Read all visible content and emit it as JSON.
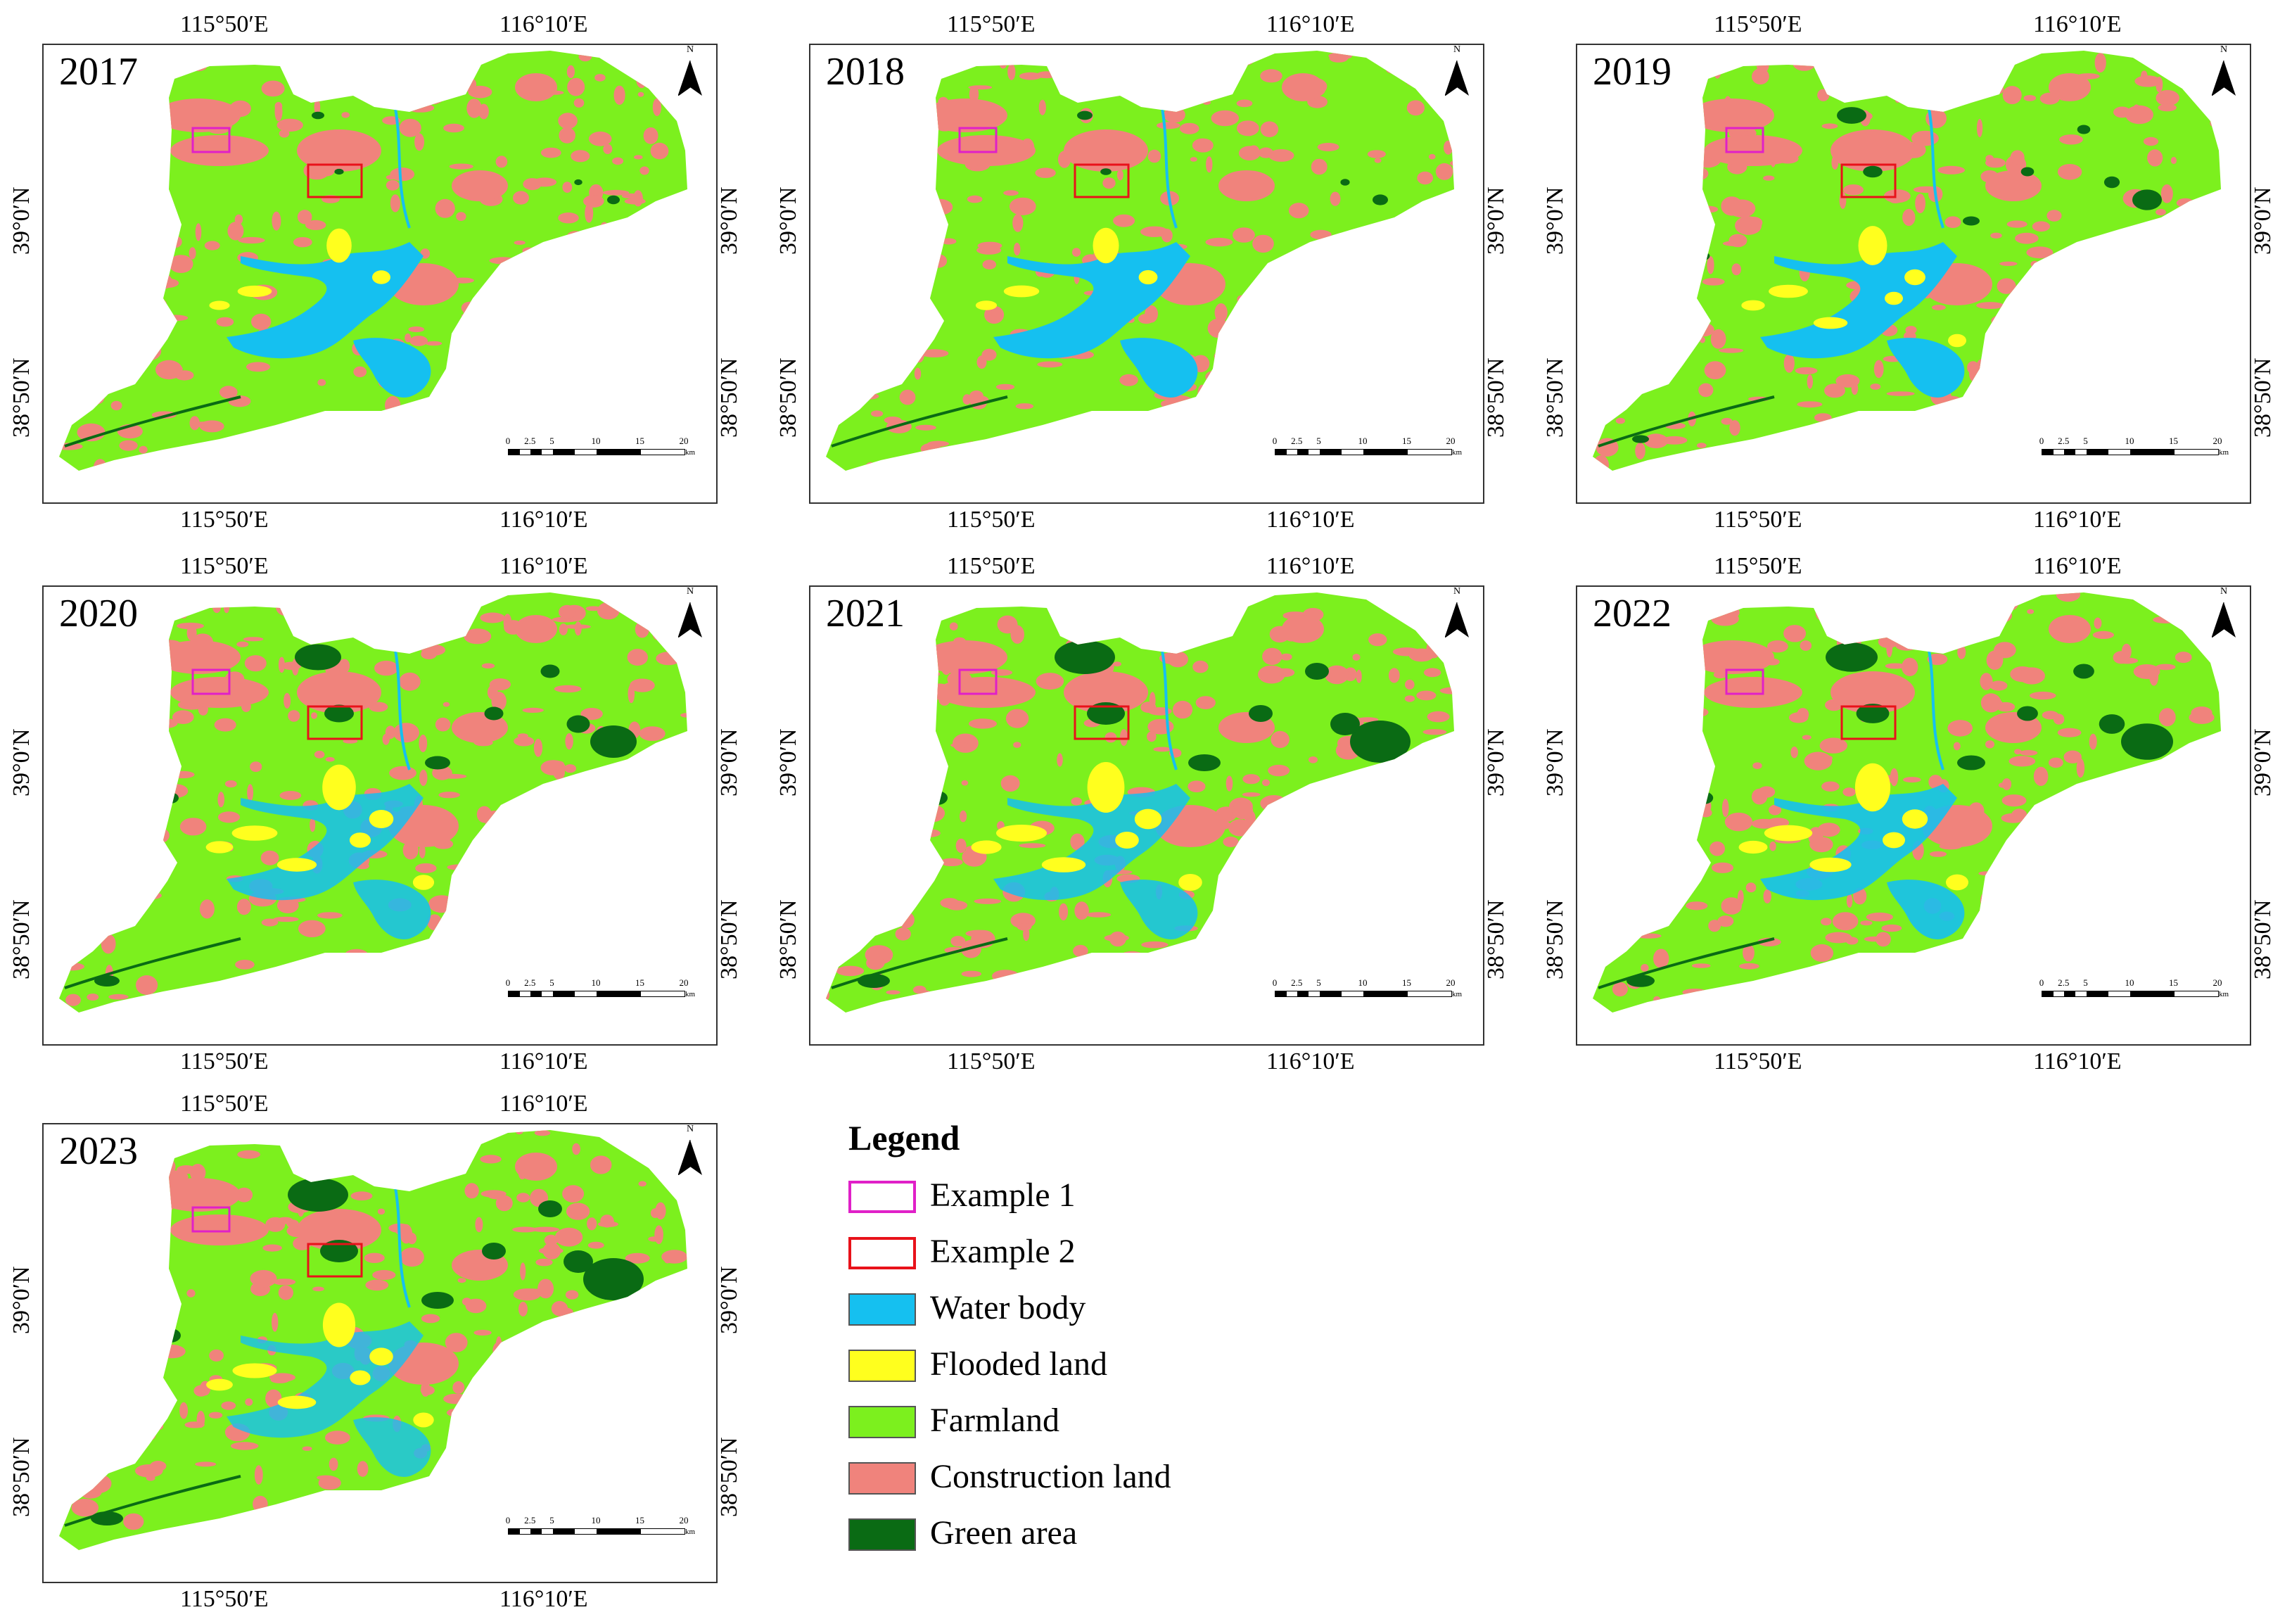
{
  "axes": {
    "lon_left": "115°50′E",
    "lon_right": "116°10′E",
    "lat_top": "39°0′N",
    "lat_bottom": "38°50′N"
  },
  "north_label": "N",
  "scale": {
    "ticks": [
      "0",
      "2.5",
      "5",
      "10",
      "15",
      "20"
    ],
    "unit": "km"
  },
  "panels": [
    {
      "year": "2017"
    },
    {
      "year": "2018"
    },
    {
      "year": "2019"
    },
    {
      "year": "2020"
    },
    {
      "year": "2021"
    },
    {
      "year": "2022"
    },
    {
      "year": "2023"
    }
  ],
  "legend": {
    "title": "Legend",
    "items": [
      {
        "label": "Example 1",
        "color": "#e020c8",
        "style": "outline"
      },
      {
        "label": "Example 2",
        "color": "#e8121a",
        "style": "outline"
      },
      {
        "label": "Water body",
        "color": "#15c0f0",
        "style": "fill"
      },
      {
        "label": "Flooded land",
        "color": "#ffff1e",
        "style": "fill"
      },
      {
        "label": "Farmland",
        "color": "#7cf01e",
        "style": "fill"
      },
      {
        "label": "Construction land",
        "color": "#f0837c",
        "style": "fill"
      },
      {
        "label": "Green area",
        "color": "#0a6b14",
        "style": "fill"
      }
    ]
  },
  "colors": {
    "water": "#15c0f0",
    "flooded": "#ffff1e",
    "farmland": "#7cf01e",
    "construction": "#f0837c",
    "green": "#0a6b14"
  }
}
